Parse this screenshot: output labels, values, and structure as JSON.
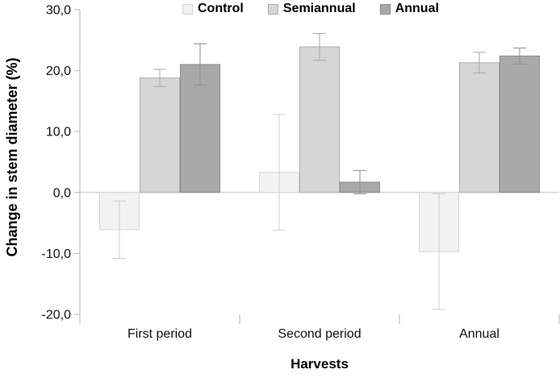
{
  "chart_data": {
    "type": "bar",
    "title": "",
    "xlabel": "Harvests",
    "ylabel": "Change in stem diameter (%)",
    "categories": [
      "First period",
      "Second period",
      "Annual"
    ],
    "series": [
      {
        "name": "Control",
        "values": [
          -6.1,
          3.3,
          -9.7
        ],
        "errors": [
          4.7,
          9.5,
          9.5
        ],
        "fill": "#f2f2f2",
        "stroke": "#d4d4d4",
        "error_color": "#cccccc"
      },
      {
        "name": "Semiannual",
        "values": [
          18.8,
          23.9,
          21.3
        ],
        "errors": [
          1.4,
          2.2,
          1.7
        ],
        "fill": "#d6d6d6",
        "stroke": "#aeaeae",
        "error_color": "#a6a6a6"
      },
      {
        "name": "Annual",
        "values": [
          21.0,
          1.7,
          22.4
        ],
        "errors": [
          3.4,
          1.9,
          1.3
        ],
        "fill": "#a9a9a9",
        "stroke": "#8c8c8c",
        "error_color": "#8c8c8c"
      }
    ],
    "y_ticks": [
      30,
      20,
      10,
      0,
      -10,
      -20
    ],
    "y_tick_labels": [
      "30,0",
      "20,0",
      "10,0",
      "0,0",
      "-10,0",
      "-20,0"
    ],
    "ylim": [
      -20,
      30
    ],
    "grid": false,
    "legend_position": "top",
    "decimal_separator": ",",
    "axis_color": "#b3b3b3",
    "zero_line_color": "#c6c6c6"
  }
}
